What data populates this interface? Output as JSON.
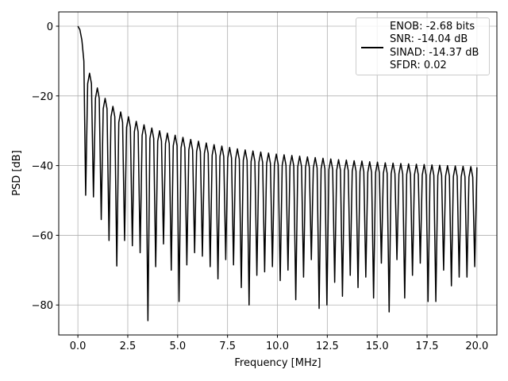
{
  "chart_data": {
    "type": "line",
    "xlabel": "Frequency [MHz]",
    "ylabel": "PSD [dB]",
    "xlim": [
      -0.96,
      21.0
    ],
    "ylim": [
      -88.6,
      4.1
    ],
    "xticks": [
      {
        "value": 0,
        "label": "0.0"
      },
      {
        "value": 2.5,
        "label": "2.5"
      },
      {
        "value": 5,
        "label": "5.0"
      },
      {
        "value": 7.5,
        "label": "7.5"
      },
      {
        "value": 10,
        "label": "10.0"
      },
      {
        "value": 12.5,
        "label": "12.5"
      },
      {
        "value": 15,
        "label": "15.0"
      },
      {
        "value": 17.5,
        "label": "17.5"
      },
      {
        "value": 20,
        "label": "20.0"
      }
    ],
    "yticks": [
      0,
      {
        "value": -20,
        "label": "−20"
      },
      {
        "value": -40,
        "label": "−40"
      },
      {
        "value": -60,
        "label": "−60"
      },
      {
        "value": -80,
        "label": "−80"
      }
    ],
    "grid": true,
    "legend": "upper right",
    "x": [
      0,
      0.1,
      0.2,
      0.3,
      0.39,
      0.49,
      0.585,
      0.68,
      0.78,
      0.88,
      0.975,
      1.07,
      1.17,
      1.27,
      1.365,
      1.46,
      1.56,
      1.66,
      1.755,
      1.85,
      1.95,
      2.05,
      2.145,
      2.24,
      2.34,
      2.44,
      2.535,
      2.63,
      2.73,
      2.83,
      2.925,
      3.02,
      3.12,
      3.22,
      3.315,
      3.41,
      3.51,
      3.61,
      3.705,
      3.8,
      3.9,
      4.0,
      4.095,
      4.19,
      4.29,
      4.39,
      4.485,
      4.58,
      4.68,
      4.78,
      4.875,
      4.97,
      5.07,
      5.17,
      5.265,
      5.36,
      5.46,
      5.56,
      5.655,
      5.75,
      5.85,
      5.95,
      6.045,
      6.14,
      6.24,
      6.34,
      6.435,
      6.53,
      6.63,
      6.73,
      6.825,
      6.92,
      7.02,
      7.12,
      7.215,
      7.31,
      7.41,
      7.51,
      7.605,
      7.7,
      7.8,
      7.9,
      7.995,
      8.09,
      8.19,
      8.29,
      8.385,
      8.48,
      8.58,
      8.68,
      8.775,
      8.87,
      8.97,
      9.07,
      9.165,
      9.26,
      9.36,
      9.46,
      9.555,
      9.65,
      9.75,
      9.85,
      9.945,
      10.04,
      10.14,
      10.24,
      10.335,
      10.43,
      10.53,
      10.63,
      10.725,
      10.82,
      10.92,
      11.02,
      11.115,
      11.21,
      11.31,
      11.41,
      11.505,
      11.6,
      11.7,
      11.8,
      11.895,
      11.99,
      12.09,
      12.19,
      12.285,
      12.38,
      12.48,
      12.58,
      12.675,
      12.77,
      12.87,
      12.97,
      13.065,
      13.16,
      13.26,
      13.36,
      13.455,
      13.55,
      13.65,
      13.75,
      13.845,
      13.94,
      14.04,
      14.14,
      14.235,
      14.33,
      14.43,
      14.53,
      14.625,
      14.72,
      14.82,
      14.92,
      15.015,
      15.11,
      15.21,
      15.31,
      15.405,
      15.5,
      15.6,
      15.7,
      15.795,
      15.89,
      15.99,
      16.09,
      16.185,
      16.28,
      16.38,
      16.48,
      16.575,
      16.67,
      16.77,
      16.87,
      16.965,
      17.06,
      17.16,
      17.26,
      17.355,
      17.45,
      17.55,
      17.65,
      17.745,
      17.84,
      17.94,
      18.04,
      18.135,
      18.23,
      18.33,
      18.43,
      18.525,
      18.62,
      18.72,
      18.82,
      18.915,
      19.01,
      19.11,
      19.21,
      19.305,
      19.4,
      19.5,
      19.6,
      19.695,
      19.79,
      19.89,
      20.0
    ],
    "series": [
      {
        "name": "ENOB: -2.68 bits\nSNR: -14.04 dB\nSINAD: -14.37 dB\nSFDR: 0.02",
        "color": "#000000",
        "values": [
          0,
          -1,
          -4,
          -10,
          -48.5,
          -16.5,
          -13.5,
          -16.5,
          -49,
          -20.7,
          -17.7,
          -20.7,
          -55.5,
          -23.7,
          -20.7,
          -23.7,
          -61.5,
          -26,
          -23,
          -26,
          -68.8,
          -27.6,
          -24.6,
          -27.6,
          -61.5,
          -29,
          -26,
          -29,
          -63,
          -30.3,
          -27.3,
          -30.3,
          -65,
          -31.3,
          -28.3,
          -31.3,
          -84.5,
          -32.2,
          -29.2,
          -32.2,
          -69,
          -33,
          -30,
          -33,
          -62.5,
          -33.7,
          -30.7,
          -33.7,
          -70,
          -34.3,
          -31.3,
          -34.3,
          -79,
          -34.9,
          -31.9,
          -34.9,
          -68.5,
          -35.5,
          -32.5,
          -35.5,
          -65,
          -36,
          -33,
          -36,
          -66,
          -36.5,
          -33.5,
          -36.5,
          -69,
          -37,
          -34,
          -37,
          -72.5,
          -37.4,
          -34.4,
          -37.4,
          -67,
          -37.8,
          -34.8,
          -37.8,
          -68.5,
          -38.2,
          -35.2,
          -38.2,
          -75,
          -38.5,
          -35.5,
          -38.5,
          -80,
          -38.8,
          -35.8,
          -38.8,
          -71.5,
          -39.1,
          -36.1,
          -39.1,
          -70.5,
          -39.4,
          -36.4,
          -39.4,
          -69,
          -39.7,
          -36.7,
          -39.7,
          -73,
          -39.9,
          -36.9,
          -39.9,
          -70,
          -40.1,
          -37.1,
          -40.1,
          -78.5,
          -40.3,
          -37.3,
          -40.3,
          -72,
          -40.5,
          -37.5,
          -40.5,
          -67,
          -40.7,
          -37.7,
          -40.7,
          -81,
          -40.9,
          -37.9,
          -40.9,
          -80,
          -41.1,
          -38.1,
          -41.1,
          -73.5,
          -41.3,
          -38.3,
          -41.3,
          -77.5,
          -41.4,
          -38.4,
          -41.4,
          -71.5,
          -41.6,
          -38.6,
          -41.6,
          -75,
          -41.7,
          -38.7,
          -41.7,
          -72,
          -41.9,
          -38.9,
          -41.9,
          -78,
          -42,
          -39,
          -42,
          -68,
          -42.2,
          -39.2,
          -42.2,
          -82,
          -42.3,
          -39.3,
          -42.3,
          -67,
          -42.4,
          -39.4,
          -42.4,
          -78,
          -42.5,
          -39.5,
          -42.5,
          -71.5,
          -42.6,
          -39.6,
          -42.6,
          -68,
          -42.7,
          -39.7,
          -42.7,
          -79,
          -42.8,
          -39.8,
          -42.8,
          -79,
          -42.9,
          -39.9,
          -42.9,
          -70,
          -43,
          -40,
          -43,
          -74.5,
          -43.1,
          -40.1,
          -43.1,
          -72,
          -43.2,
          -40.2,
          -43.2,
          -72,
          -43.3,
          -40.3,
          -43.3,
          -69,
          -40.5
        ]
      }
    ]
  }
}
